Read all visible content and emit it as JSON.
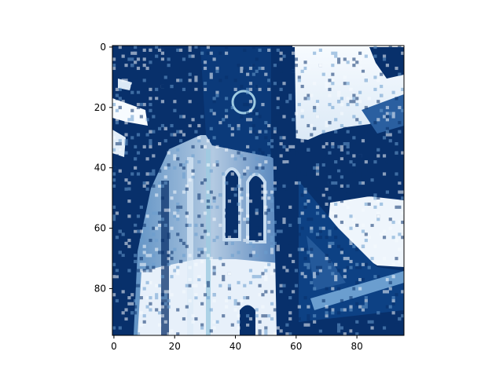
{
  "chart_data": {
    "type": "heatmap",
    "title": "",
    "xlabel": "",
    "ylabel": "",
    "colormap": "Blues_r",
    "colors": {
      "low": "#08306b",
      "mid": "#6b9ecf",
      "high": "#f7fbff"
    },
    "grid": false,
    "image_size": {
      "columns": 96,
      "rows": 96
    },
    "x_ticks": [
      0,
      20,
      40,
      60,
      80
    ],
    "y_ticks": [
      0,
      20,
      40,
      60,
      80
    ],
    "xlim": [
      -0.5,
      95.5
    ],
    "ylim": [
      95.5,
      -0.5
    ],
    "y_axis_inverted": true
  }
}
